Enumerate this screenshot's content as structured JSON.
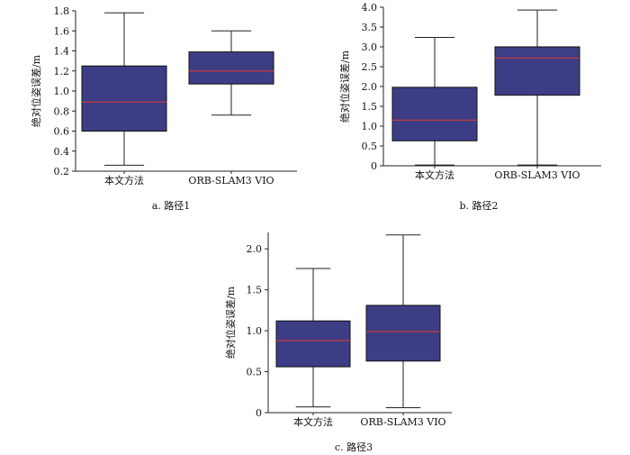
{
  "chart_data": [
    {
      "type": "box",
      "caption": "a. 路径1",
      "ylabel": "绝对位姿误差/m",
      "ylim": [
        0.2,
        1.8
      ],
      "yticks": [
        "0.2",
        "0.4",
        "0.6",
        "0.8",
        "1.0",
        "1.2",
        "1.4",
        "1.6",
        "1.8"
      ],
      "categories": [
        "本文方法",
        "ORB-SLAM3 VIO"
      ],
      "boxes": [
        {
          "min": 0.26,
          "q1": 0.6,
          "median": 0.89,
          "q3": 1.25,
          "max": 1.78
        },
        {
          "min": 0.76,
          "q1": 1.07,
          "median": 1.2,
          "q3": 1.39,
          "max": 1.6
        }
      ]
    },
    {
      "type": "box",
      "caption": "b. 路径2",
      "ylabel": "绝对位姿误差/m",
      "ylim": [
        0,
        4.0
      ],
      "yticks": [
        "0",
        "0.5",
        "1.0",
        "1.5",
        "2.0",
        "2.5",
        "3.0",
        "3.5",
        "4.0"
      ],
      "categories": [
        "本文方法",
        "ORB-SLAM3 VIO"
      ],
      "boxes": [
        {
          "min": 0.02,
          "q1": 0.63,
          "median": 1.15,
          "q3": 1.98,
          "max": 3.24
        },
        {
          "min": 0.02,
          "q1": 1.78,
          "median": 2.72,
          "q3": 3.0,
          "max": 3.93
        }
      ]
    },
    {
      "type": "box",
      "caption": "c. 路径3",
      "ylabel": "绝对位姿误差/m",
      "ylim": [
        0,
        2.2
      ],
      "yticks": [
        "0",
        "0.5",
        "1.0",
        "1.5",
        "2.0"
      ],
      "categories": [
        "本文方法",
        "ORB-SLAM3 VIO"
      ],
      "boxes": [
        {
          "min": 0.07,
          "q1": 0.56,
          "median": 0.88,
          "q3": 1.12,
          "max": 1.76
        },
        {
          "min": 0.06,
          "q1": 0.63,
          "median": 0.99,
          "q3": 1.31,
          "max": 2.17
        }
      ]
    }
  ],
  "colors": {
    "box_fill": "#3d3d86",
    "median": "#c23a3a",
    "line": "#222222"
  }
}
